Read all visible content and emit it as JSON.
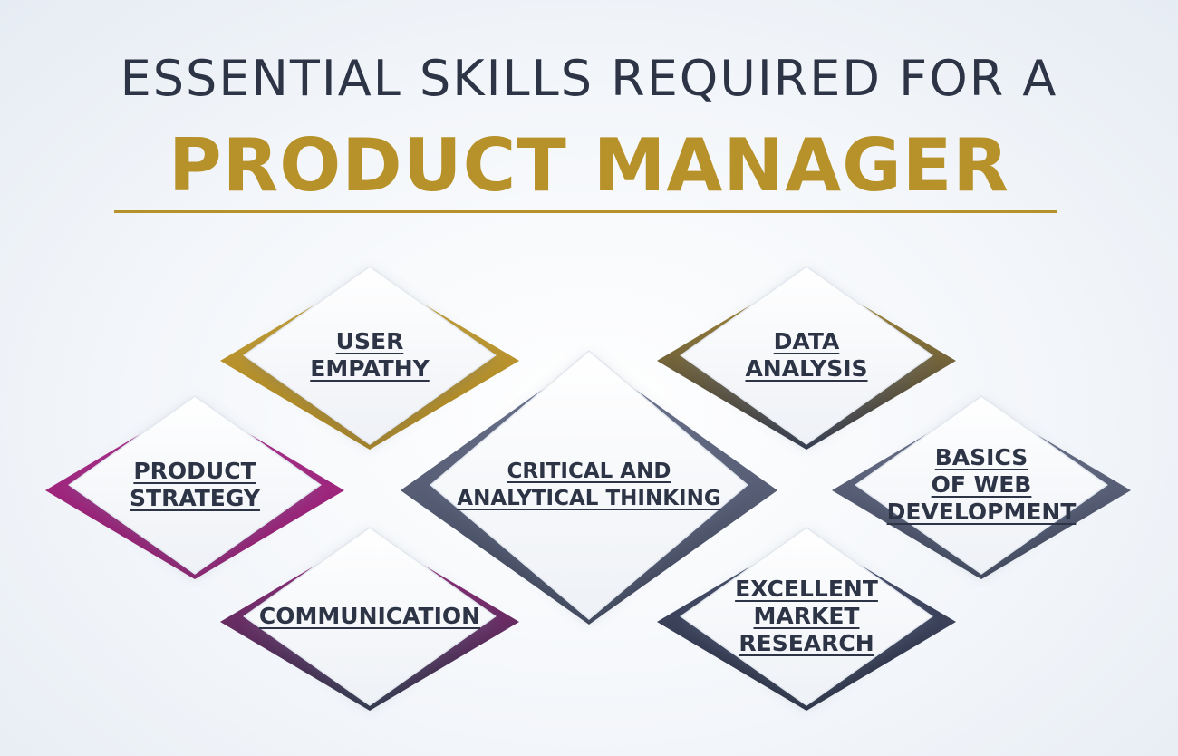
{
  "title": {
    "line1": "ESSENTIAL SKILLS REQUIRED FOR A",
    "line2": "PRODUCT MANAGER"
  },
  "colors": {
    "gold": "#b7922a",
    "magenta": "#a3247f",
    "navy": "#2c3446",
    "slate": "#5d6580"
  },
  "skills": [
    {
      "id": "user-empathy",
      "lines": [
        "USER",
        "EMPATHY"
      ],
      "accent": "gold"
    },
    {
      "id": "data-analysis",
      "lines": [
        "DATA",
        "ANALYSIS"
      ],
      "accent": "gold-navy"
    },
    {
      "id": "product-strategy",
      "lines": [
        "PRODUCT",
        "STRATEGY"
      ],
      "accent": "magenta"
    },
    {
      "id": "critical-thinking",
      "lines": [
        "CRITICAL AND",
        "ANALYTICAL THINKING"
      ],
      "accent": "slate"
    },
    {
      "id": "web-development",
      "lines": [
        "BASICS",
        "OF WEB",
        "DEVELOPMENT"
      ],
      "accent": "slate"
    },
    {
      "id": "communication",
      "lines": [
        "COMMUNICATION"
      ],
      "accent": "magenta-navy"
    },
    {
      "id": "market-research",
      "lines": [
        "EXCELLENT",
        "MARKET",
        "RESEARCH"
      ],
      "accent": "navy"
    }
  ]
}
